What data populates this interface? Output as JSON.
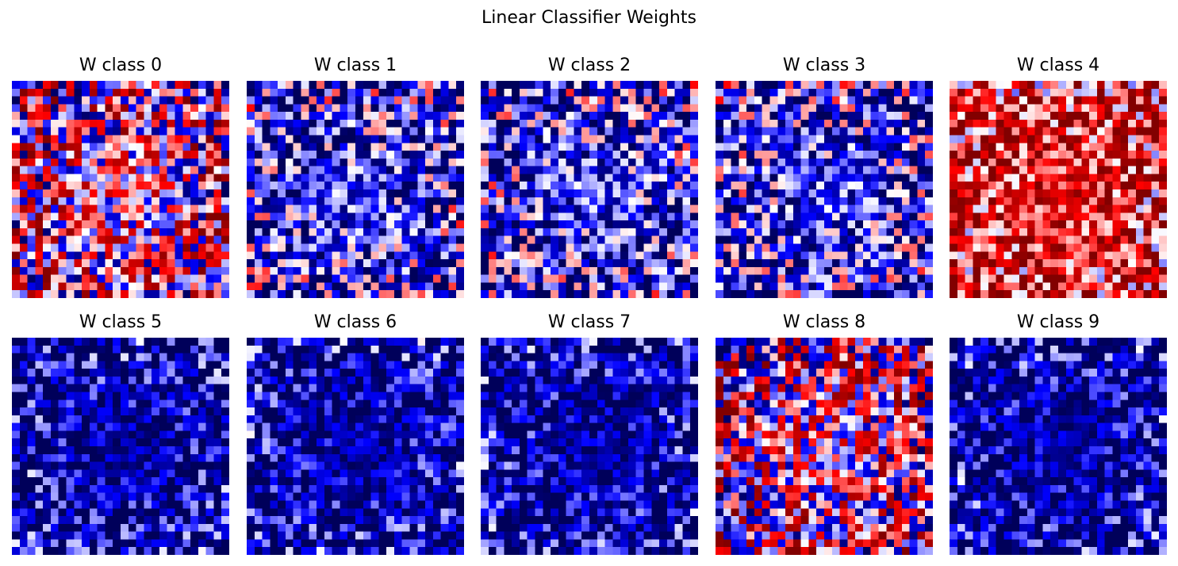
{
  "figure": {
    "title": "Linear Classifier Weights"
  },
  "chart_data": {
    "type": "heatmap",
    "title": "Linear Classifier Weights",
    "grid_size": [
      28,
      28
    ],
    "colormap": "seismic",
    "axes_visible": false,
    "layout": {
      "rows": 2,
      "cols": 5
    },
    "panels": [
      {
        "title": "W class 0",
        "dominant": "mixed",
        "seed": 11
      },
      {
        "title": "W class 1",
        "dominant": "blue",
        "seed": 23
      },
      {
        "title": "W class 2",
        "dominant": "blue",
        "seed": 37
      },
      {
        "title": "W class 3",
        "dominant": "blue",
        "seed": 41
      },
      {
        "title": "W class 4",
        "dominant": "red",
        "seed": 53
      },
      {
        "title": "W class 5",
        "dominant": "deep-blue",
        "seed": 67
      },
      {
        "title": "W class 6",
        "dominant": "deep-blue",
        "seed": 71
      },
      {
        "title": "W class 7",
        "dominant": "deep-blue",
        "seed": 83
      },
      {
        "title": "W class 8",
        "dominant": "mixed",
        "seed": 97
      },
      {
        "title": "W class 9",
        "dominant": "deep-blue",
        "seed": 101
      }
    ]
  }
}
